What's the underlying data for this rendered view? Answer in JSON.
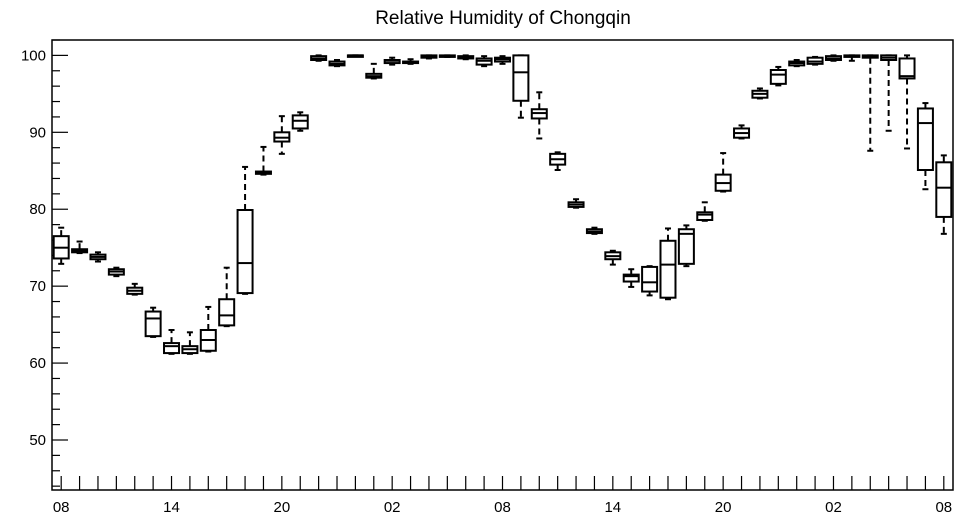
{
  "chart_data": {
    "type": "box",
    "title": "Relative Humidity of Chongqin",
    "xlabel": "",
    "ylabel": "",
    "ylim": [
      43.5,
      102
    ],
    "xlim": [
      -0.5,
      48.5
    ],
    "y_ticks": [
      50,
      60,
      70,
      80,
      90,
      100
    ],
    "x_tick_labels": [
      {
        "pos": 0,
        "label": "08"
      },
      {
        "pos": 6,
        "label": "14"
      },
      {
        "pos": 12,
        "label": "20"
      },
      {
        "pos": 18,
        "label": "02"
      },
      {
        "pos": 24,
        "label": "08"
      },
      {
        "pos": 30,
        "label": "14"
      },
      {
        "pos": 36,
        "label": "20"
      },
      {
        "pos": 42,
        "label": "02"
      },
      {
        "pos": 48,
        "label": "08"
      }
    ],
    "grid": false,
    "series": [
      {
        "boxes": [
          {
            "x": 0,
            "min": 72.9,
            "q1": 73.6,
            "median": 75.0,
            "q3": 76.5,
            "max": 77.6
          },
          {
            "x": 1,
            "min": 74.3,
            "q1": 74.4,
            "median": 74.6,
            "q3": 74.8,
            "max": 75.8
          },
          {
            "x": 2,
            "min": 73.2,
            "q1": 73.5,
            "median": 73.8,
            "q3": 74.1,
            "max": 74.4
          },
          {
            "x": 3,
            "min": 71.3,
            "q1": 71.5,
            "median": 71.9,
            "q3": 72.2,
            "max": 72.4
          },
          {
            "x": 4,
            "min": 68.9,
            "q1": 69.0,
            "median": 69.4,
            "q3": 69.8,
            "max": 70.3
          },
          {
            "x": 5,
            "min": 63.4,
            "q1": 63.5,
            "median": 65.8,
            "q3": 66.7,
            "max": 67.2
          },
          {
            "x": 6,
            "min": 61.2,
            "q1": 61.3,
            "median": 62.2,
            "q3": 62.6,
            "max": 64.3
          },
          {
            "x": 7,
            "min": 61.2,
            "q1": 61.3,
            "median": 61.8,
            "q3": 62.2,
            "max": 64.0
          },
          {
            "x": 8,
            "min": 61.5,
            "q1": 61.6,
            "median": 63.0,
            "q3": 64.3,
            "max": 67.3
          },
          {
            "x": 9,
            "min": 64.8,
            "q1": 64.9,
            "median": 66.2,
            "q3": 68.3,
            "max": 72.4
          },
          {
            "x": 10,
            "min": 69.0,
            "q1": 69.1,
            "median": 73.0,
            "q3": 79.9,
            "max": 85.5
          },
          {
            "x": 11,
            "min": 84.5,
            "q1": 84.6,
            "median": 84.7,
            "q3": 84.9,
            "max": 88.1
          },
          {
            "x": 12,
            "min": 87.2,
            "q1": 88.8,
            "median": 89.3,
            "q3": 90.0,
            "max": 92.1
          },
          {
            "x": 13,
            "min": 90.2,
            "q1": 90.5,
            "median": 91.5,
            "q3": 92.2,
            "max": 92.6
          },
          {
            "x": 14,
            "min": 99.3,
            "q1": 99.4,
            "median": 99.6,
            "q3": 99.9,
            "max": 100.0
          },
          {
            "x": 15,
            "min": 98.6,
            "q1": 98.7,
            "median": 98.9,
            "q3": 99.2,
            "max": 99.4
          },
          {
            "x": 16,
            "min": 99.9,
            "q1": 99.9,
            "median": 100.0,
            "q3": 100.0,
            "max": 100.0
          },
          {
            "x": 17,
            "min": 97.0,
            "q1": 97.1,
            "median": 97.3,
            "q3": 97.6,
            "max": 98.9
          },
          {
            "x": 18,
            "min": 98.8,
            "q1": 99.0,
            "median": 99.3,
            "q3": 99.4,
            "max": 99.7
          },
          {
            "x": 19,
            "min": 98.9,
            "q1": 99.0,
            "median": 99.1,
            "q3": 99.2,
            "max": 99.5
          },
          {
            "x": 20,
            "min": 99.6,
            "q1": 99.7,
            "median": 99.8,
            "q3": 100.0,
            "max": 100.0
          },
          {
            "x": 21,
            "min": 99.8,
            "q1": 99.8,
            "median": 99.9,
            "q3": 100.0,
            "max": 100.0
          },
          {
            "x": 22,
            "min": 99.5,
            "q1": 99.6,
            "median": 99.7,
            "q3": 99.9,
            "max": 100.0
          },
          {
            "x": 23,
            "min": 98.6,
            "q1": 98.8,
            "median": 99.3,
            "q3": 99.6,
            "max": 99.9
          },
          {
            "x": 24,
            "min": 98.9,
            "q1": 99.2,
            "median": 99.5,
            "q3": 99.7,
            "max": 99.9
          },
          {
            "x": 25,
            "min": 91.9,
            "q1": 94.1,
            "median": 97.8,
            "q3": 100.0,
            "max": 100.0
          },
          {
            "x": 26,
            "min": 89.2,
            "q1": 91.8,
            "median": 92.5,
            "q3": 93.0,
            "max": 95.2
          },
          {
            "x": 27,
            "min": 85.1,
            "q1": 85.8,
            "median": 86.5,
            "q3": 87.2,
            "max": 87.4
          },
          {
            "x": 28,
            "min": 80.2,
            "q1": 80.3,
            "median": 80.6,
            "q3": 80.9,
            "max": 81.3
          },
          {
            "x": 29,
            "min": 76.8,
            "q1": 76.9,
            "median": 77.1,
            "q3": 77.4,
            "max": 77.6
          },
          {
            "x": 30,
            "min": 72.8,
            "q1": 73.5,
            "median": 73.9,
            "q3": 74.4,
            "max": 74.6
          },
          {
            "x": 31,
            "min": 69.9,
            "q1": 70.6,
            "median": 71.3,
            "q3": 71.5,
            "max": 72.2
          },
          {
            "x": 32,
            "min": 68.8,
            "q1": 69.3,
            "median": 70.5,
            "q3": 72.5,
            "max": 72.6
          },
          {
            "x": 33,
            "min": 68.3,
            "q1": 68.5,
            "median": 72.8,
            "q3": 75.9,
            "max": 77.5
          },
          {
            "x": 34,
            "min": 72.6,
            "q1": 72.9,
            "median": 76.8,
            "q3": 77.4,
            "max": 77.9
          },
          {
            "x": 35,
            "min": 78.5,
            "q1": 78.6,
            "median": 79.3,
            "q3": 79.6,
            "max": 80.9
          },
          {
            "x": 36,
            "min": 82.3,
            "q1": 82.4,
            "median": 83.4,
            "q3": 84.5,
            "max": 87.3
          },
          {
            "x": 37,
            "min": 89.2,
            "q1": 89.3,
            "median": 89.9,
            "q3": 90.5,
            "max": 90.9
          },
          {
            "x": 38,
            "min": 94.4,
            "q1": 94.5,
            "median": 95.0,
            "q3": 95.4,
            "max": 95.7
          },
          {
            "x": 39,
            "min": 96.1,
            "q1": 96.3,
            "median": 97.5,
            "q3": 98.1,
            "max": 98.5
          },
          {
            "x": 40,
            "min": 98.6,
            "q1": 98.7,
            "median": 99.0,
            "q3": 99.2,
            "max": 99.4
          },
          {
            "x": 41,
            "min": 98.8,
            "q1": 98.9,
            "median": 99.2,
            "q3": 99.7,
            "max": 99.8
          },
          {
            "x": 42,
            "min": 99.3,
            "q1": 99.4,
            "median": 99.6,
            "q3": 99.9,
            "max": 100.0
          },
          {
            "x": 43,
            "min": 99.3,
            "q1": 99.8,
            "median": 99.9,
            "q3": 100.0,
            "max": 100.0
          },
          {
            "x": 44,
            "min": 87.6,
            "q1": 99.7,
            "median": 99.9,
            "q3": 100.0,
            "max": 100.0
          },
          {
            "x": 45,
            "min": 90.2,
            "q1": 99.4,
            "median": 99.7,
            "q3": 100.0,
            "max": 100.0
          },
          {
            "x": 46,
            "min": 87.9,
            "q1": 97.0,
            "median": 97.3,
            "q3": 99.6,
            "max": 100.0
          },
          {
            "x": 47,
            "min": 82.6,
            "q1": 85.1,
            "median": 91.2,
            "q3": 93.1,
            "max": 93.8
          },
          {
            "x": 48,
            "min": 76.8,
            "q1": 79.0,
            "median": 82.8,
            "q3": 86.1,
            "max": 87.0
          }
        ]
      }
    ]
  }
}
